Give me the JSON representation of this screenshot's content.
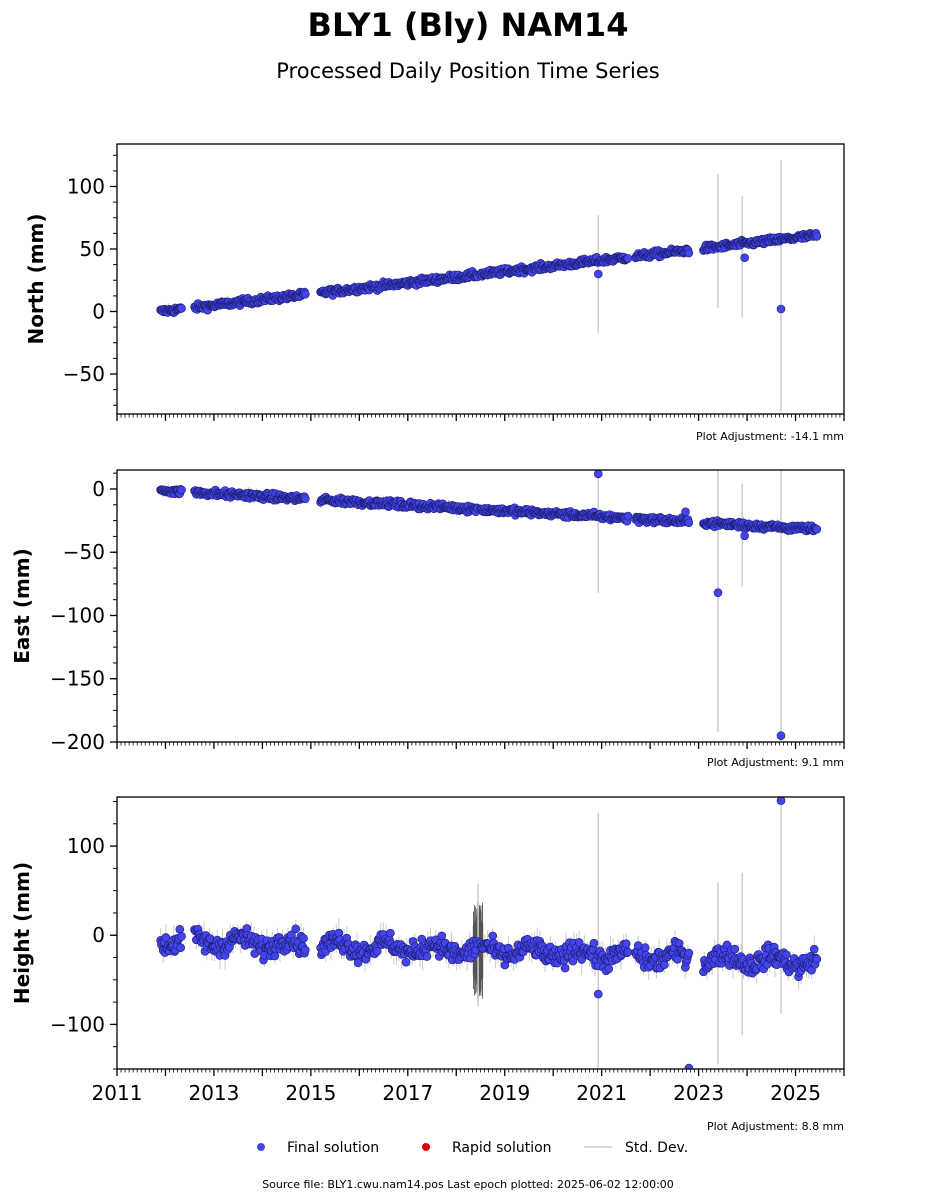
{
  "title": "BLY1 (Bly) NAM14",
  "subtitle": "Processed Daily Position Time Series",
  "colors": {
    "final": "#4444ee",
    "final_edge": "#1a1a66",
    "rapid": "#dd0000",
    "stddev": "#cccccc",
    "axis": "#000000"
  },
  "legend": {
    "final": "Final solution",
    "rapid": "Rapid solution",
    "std": "Std. Dev."
  },
  "source_text": "Source file: BLY1.cwu.nam14.pos  Last epoch plotted: 2025-06-02 12:00:00",
  "chart_data": [
    {
      "type": "scatter",
      "ylabel": "North (mm)",
      "adjustment": "Plot Adjustment: -14.1 mm",
      "xlim": [
        2011,
        2026
      ],
      "ylim": [
        -82,
        134
      ],
      "yticks": [
        {
          "v": 100,
          "label": "100"
        },
        {
          "v": 50,
          "label": "50"
        },
        {
          "v": 0,
          "label": "0"
        },
        {
          "v": -50,
          "label": "−50"
        }
      ],
      "yminor_step": 12.5,
      "segments": [
        [
          2011.9,
          2012.35
        ],
        [
          2012.6,
          2014.9
        ],
        [
          2015.2,
          2018.45
        ],
        [
          2018.5,
          2021.55
        ],
        [
          2021.7,
          2022.8
        ],
        [
          2023.1,
          2025.45
        ]
      ],
      "trend": [
        [
          2011.9,
          0
        ],
        [
          2025.45,
          61
        ]
      ],
      "scatter": 1.8,
      "outliers": [
        [
          2020.93,
          30
        ],
        [
          2023.95,
          43
        ],
        [
          2024.7,
          2
        ]
      ],
      "errorbars": [
        [
          2020.93,
          -17,
          77
        ],
        [
          2023.4,
          3,
          110
        ],
        [
          2023.9,
          -5,
          92
        ],
        [
          2024.7,
          -80,
          121
        ]
      ]
    },
    {
      "type": "scatter",
      "ylabel": "East (mm)",
      "adjustment": "Plot Adjustment: 9.1 mm",
      "xlim": [
        2011,
        2026
      ],
      "ylim": [
        -200,
        15
      ],
      "yticks": [
        {
          "v": 0,
          "label": "0"
        },
        {
          "v": -50,
          "label": "−50"
        },
        {
          "v": -100,
          "label": "−100"
        },
        {
          "v": -150,
          "label": "−150"
        },
        {
          "v": -200,
          "label": "−200"
        }
      ],
      "yminor_step": 12.5,
      "segments": [
        [
          2011.9,
          2012.35
        ],
        [
          2012.6,
          2014.9
        ],
        [
          2015.2,
          2018.45
        ],
        [
          2018.5,
          2021.55
        ],
        [
          2021.7,
          2022.8
        ],
        [
          2023.1,
          2025.45
        ]
      ],
      "trend": [
        [
          2011.9,
          -1
        ],
        [
          2025.45,
          -32
        ]
      ],
      "scatter": 1.8,
      "outliers": [
        [
          2020.93,
          12
        ],
        [
          2022.73,
          -18
        ],
        [
          2023.4,
          -82
        ],
        [
          2023.95,
          -37
        ],
        [
          2024.7,
          -195
        ]
      ],
      "errorbars": [
        [
          2020.93,
          -82,
          10
        ],
        [
          2023.4,
          -192,
          15
        ],
        [
          2023.9,
          -77,
          4
        ],
        [
          2024.7,
          -200,
          15
        ]
      ]
    },
    {
      "type": "scatter",
      "ylabel": "Height (mm)",
      "adjustment": "Plot Adjustment: 8.8 mm",
      "xlim": [
        2011,
        2026
      ],
      "ylim": [
        -150,
        155
      ],
      "yticks": [
        {
          "v": 100,
          "label": "100"
        },
        {
          "v": 0,
          "label": "0"
        },
        {
          "v": -100,
          "label": "−100"
        }
      ],
      "yminor_step": 25,
      "xticks": [
        {
          "v": 2011,
          "label": "2011"
        },
        {
          "v": 2013,
          "label": "2013"
        },
        {
          "v": 2015,
          "label": "2015"
        },
        {
          "v": 2017,
          "label": "2017"
        },
        {
          "v": 2019,
          "label": "2019"
        },
        {
          "v": 2021,
          "label": "2021"
        },
        {
          "v": 2023,
          "label": "2023"
        },
        {
          "v": 2025,
          "label": "2025"
        }
      ],
      "segments": [
        [
          2011.9,
          2012.35
        ],
        [
          2012.6,
          2014.9
        ],
        [
          2015.2,
          2018.45
        ],
        [
          2018.5,
          2021.55
        ],
        [
          2021.7,
          2022.8
        ],
        [
          2023.1,
          2025.45
        ]
      ],
      "trend": [
        [
          2011.9,
          -5
        ],
        [
          2025.45,
          -30
        ]
      ],
      "scatter": 8,
      "outliers": [
        [
          2020.93,
          -66
        ],
        [
          2022.8,
          -149
        ],
        [
          2024.7,
          151
        ]
      ],
      "errorbars": [
        [
          2020.93,
          -150,
          137
        ],
        [
          2023.4,
          -145,
          59
        ],
        [
          2023.9,
          -112,
          70
        ],
        [
          2024.7,
          -88,
          152
        ],
        [
          2018.45,
          -80,
          58
        ]
      ]
    }
  ]
}
